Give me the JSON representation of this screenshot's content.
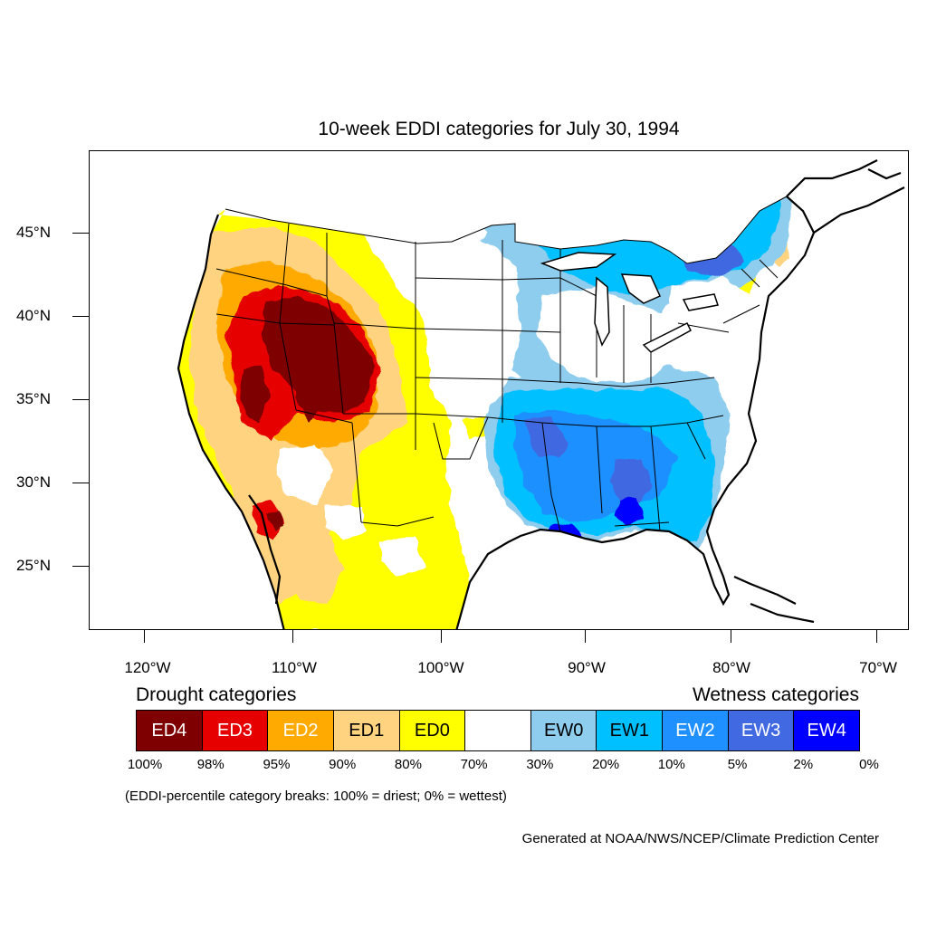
{
  "title": "10-week EDDI categories for July 30, 1994",
  "colors": {
    "ED4": "#7f0000",
    "ED3": "#e60000",
    "ED2": "#ffaa00",
    "ED1": "#ffd37f",
    "ED0": "#ffff00",
    "none": "#ffffff",
    "EW0": "#8fcdef",
    "EW1": "#00c0ff",
    "EW2": "#1e90ff",
    "EW3": "#4169e1",
    "EW4": "#0000ff"
  },
  "axes": {
    "lat_labels": [
      "45°N",
      "40°N",
      "35°N",
      "30°N",
      "25°N"
    ],
    "lat_values": [
      45,
      40,
      35,
      30,
      25
    ],
    "lon_labels": [
      "120°W",
      "110°W",
      "100°W",
      "90°W",
      "80°W",
      "70°W"
    ],
    "lon_values": [
      -120,
      -110,
      -100,
      -90,
      -80,
      -70
    ]
  },
  "legend": {
    "drought_heading": "Drought categories",
    "wetness_heading": "Wetness categories",
    "cells": [
      {
        "label": "ED4",
        "bg": "#7f0000",
        "fg": "#ffffff"
      },
      {
        "label": "ED3",
        "bg": "#e60000",
        "fg": "#ffffff"
      },
      {
        "label": "ED2",
        "bg": "#ffaa00",
        "fg": "#ffffff"
      },
      {
        "label": "ED1",
        "bg": "#ffd37f",
        "fg": "#000000"
      },
      {
        "label": "ED0",
        "bg": "#ffff00",
        "fg": "#000000"
      },
      {
        "label": "",
        "bg": "#ffffff",
        "fg": "#000000"
      },
      {
        "label": "EW0",
        "bg": "#8fcdef",
        "fg": "#000000"
      },
      {
        "label": "EW1",
        "bg": "#00c0ff",
        "fg": "#000000"
      },
      {
        "label": "EW2",
        "bg": "#1e90ff",
        "fg": "#ffffff"
      },
      {
        "label": "EW3",
        "bg": "#4169e1",
        "fg": "#ffffff"
      },
      {
        "label": "EW4",
        "bg": "#0000ff",
        "fg": "#ffffff"
      }
    ],
    "breaks": [
      "100%",
      "98%",
      "95%",
      "90%",
      "80%",
      "70%",
      "30%",
      "20%",
      "10%",
      "5%",
      "2%",
      "0%"
    ]
  },
  "note": "(EDDI-percentile category breaks: 100% = driest; 0% = wettest)",
  "credit": "Generated at NOAA/NWS/NCEP/Climate Prediction Center"
}
